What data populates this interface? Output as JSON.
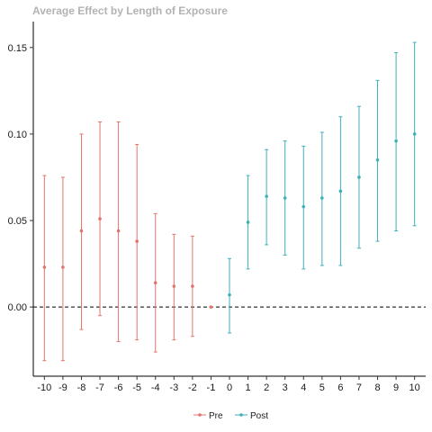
{
  "chart_data": {
    "type": "scatter",
    "title": "Average Effect by Length of Exposure",
    "xlabel": "",
    "ylabel": "",
    "x_ticks": [
      "-10",
      "-9",
      "-8",
      "-7",
      "-6",
      "-5",
      "-4",
      "-3",
      "-2",
      "-1",
      "0",
      "1",
      "2",
      "3",
      "4",
      "5",
      "6",
      "7",
      "8",
      "9",
      "10"
    ],
    "y_ticks": [
      "0.00",
      "0.05",
      "0.10",
      "0.15"
    ],
    "xlim": [
      -10.6,
      10.6
    ],
    "ylim": [
      -0.04,
      0.165
    ],
    "reference_line_y": 0,
    "grid": false,
    "legend_position": "bottom",
    "series": [
      {
        "name": "Pre",
        "color": "#e0756d",
        "points": [
          {
            "x": -10,
            "y": 0.023,
            "lower": -0.031,
            "upper": 0.076
          },
          {
            "x": -9,
            "y": 0.023,
            "lower": -0.031,
            "upper": 0.075
          },
          {
            "x": -8,
            "y": 0.044,
            "lower": -0.013,
            "upper": 0.1
          },
          {
            "x": -7,
            "y": 0.051,
            "lower": -0.005,
            "upper": 0.107
          },
          {
            "x": -6,
            "y": 0.044,
            "lower": -0.02,
            "upper": 0.107
          },
          {
            "x": -5,
            "y": 0.038,
            "lower": -0.019,
            "upper": 0.094
          },
          {
            "x": -4,
            "y": 0.014,
            "lower": -0.026,
            "upper": 0.054
          },
          {
            "x": -3,
            "y": 0.012,
            "lower": -0.019,
            "upper": 0.042
          },
          {
            "x": -2,
            "y": 0.012,
            "lower": -0.017,
            "upper": 0.041
          },
          {
            "x": -1,
            "y": 0.0,
            "lower": 0.0,
            "upper": 0.0
          }
        ]
      },
      {
        "name": "Post",
        "color": "#3fb0ba",
        "points": [
          {
            "x": 0,
            "y": 0.007,
            "lower": -0.015,
            "upper": 0.028
          },
          {
            "x": 1,
            "y": 0.049,
            "lower": 0.022,
            "upper": 0.076
          },
          {
            "x": 2,
            "y": 0.064,
            "lower": 0.036,
            "upper": 0.091
          },
          {
            "x": 3,
            "y": 0.063,
            "lower": 0.03,
            "upper": 0.096
          },
          {
            "x": 4,
            "y": 0.058,
            "lower": 0.022,
            "upper": 0.093
          },
          {
            "x": 5,
            "y": 0.063,
            "lower": 0.024,
            "upper": 0.101
          },
          {
            "x": 6,
            "y": 0.067,
            "lower": 0.024,
            "upper": 0.11
          },
          {
            "x": 7,
            "y": 0.075,
            "lower": 0.034,
            "upper": 0.116
          },
          {
            "x": 8,
            "y": 0.085,
            "lower": 0.038,
            "upper": 0.131
          },
          {
            "x": 9,
            "y": 0.096,
            "lower": 0.044,
            "upper": 0.147
          },
          {
            "x": 10,
            "y": 0.1,
            "lower": 0.047,
            "upper": 0.153
          }
        ]
      }
    ]
  }
}
